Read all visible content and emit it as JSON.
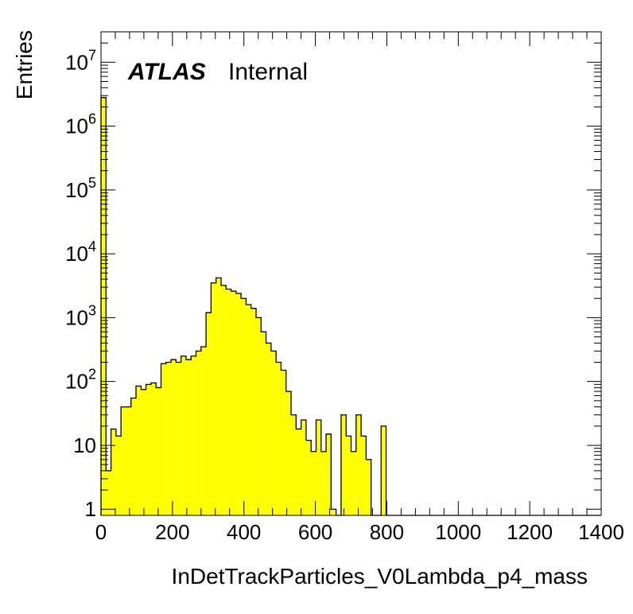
{
  "chart_data": {
    "type": "histogram",
    "title": "",
    "xlabel": "InDetTrackParticles_V0Lambda_p4_mass",
    "ylabel": "Entries",
    "label_bold": "ATLAS",
    "label_normal": "Internal",
    "xlim": [
      0,
      1400
    ],
    "ylim": [
      0.8,
      30000000
    ],
    "y_scale": "log",
    "x_ticks": [
      "0",
      "200",
      "400",
      "600",
      "800",
      "1000",
      "1200",
      "1400"
    ],
    "y_ticks": [
      {
        "value": 1,
        "base": "1",
        "exp": ""
      },
      {
        "value": 10,
        "base": "10",
        "exp": ""
      },
      {
        "value": 100,
        "base": "10",
        "exp": "2"
      },
      {
        "value": 1000,
        "base": "10",
        "exp": "3"
      },
      {
        "value": 10000,
        "base": "10",
        "exp": "4"
      },
      {
        "value": 100000,
        "base": "10",
        "exp": "5"
      },
      {
        "value": 1000000,
        "base": "10",
        "exp": "6"
      },
      {
        "value": 10000000,
        "base": "10",
        "exp": "7"
      }
    ],
    "fill_color": "#ffff00",
    "line_color": "#000000",
    "bin_width": 14,
    "bin_start": 0,
    "values": [
      2800000,
      4,
      18,
      14,
      40,
      40,
      55,
      85,
      75,
      90,
      95,
      80,
      190,
      200,
      220,
      200,
      250,
      220,
      250,
      300,
      350,
      1200,
      3500,
      4200,
      3200,
      2800,
      2600,
      2400,
      2000,
      1600,
      1400,
      1000,
      600,
      400,
      300,
      200,
      150,
      70,
      30,
      18,
      25,
      12,
      8,
      25,
      8,
      15,
      1,
      0,
      30,
      14,
      8,
      30,
      14,
      6,
      0,
      0,
      20,
      0,
      0,
      0,
      0,
      0,
      0,
      0,
      0,
      0,
      0,
      0,
      0,
      0,
      0,
      0,
      0,
      0,
      0,
      0,
      0,
      0,
      0,
      0,
      0,
      0,
      0,
      0,
      0,
      0,
      0,
      0,
      0,
      0,
      0,
      0,
      0,
      0,
      0,
      0,
      0,
      0,
      0,
      0
    ]
  }
}
